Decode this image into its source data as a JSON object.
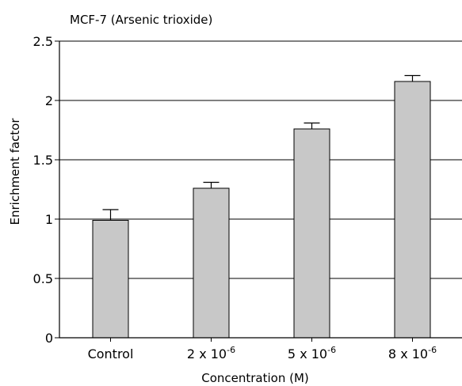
{
  "chart_data": {
    "type": "bar",
    "title": "MCF-7 (Arsenic trioxide)",
    "xlabel": "Concentration (M)",
    "ylabel": "Enrichment factor",
    "categories": [
      {
        "base": "Control",
        "exp": ""
      },
      {
        "base": "2 x 10",
        "exp": "-6"
      },
      {
        "base": "5 x 10",
        "exp": "-6"
      },
      {
        "base": "8 x 10",
        "exp": "-6"
      }
    ],
    "values": [
      0.99,
      1.26,
      1.76,
      2.16
    ],
    "errors": [
      0.09,
      0.05,
      0.05,
      0.05
    ],
    "ylim": [
      0,
      2.5
    ],
    "yticks": [
      "0",
      "0.5",
      "1",
      "1.5",
      "2",
      "2.5"
    ],
    "ytick_values": [
      0,
      0.5,
      1,
      1.5,
      2,
      2.5
    ],
    "grid": true,
    "colors": {
      "bar": "#c8c8c8",
      "stroke": "#000000",
      "grid": "#000000"
    }
  }
}
